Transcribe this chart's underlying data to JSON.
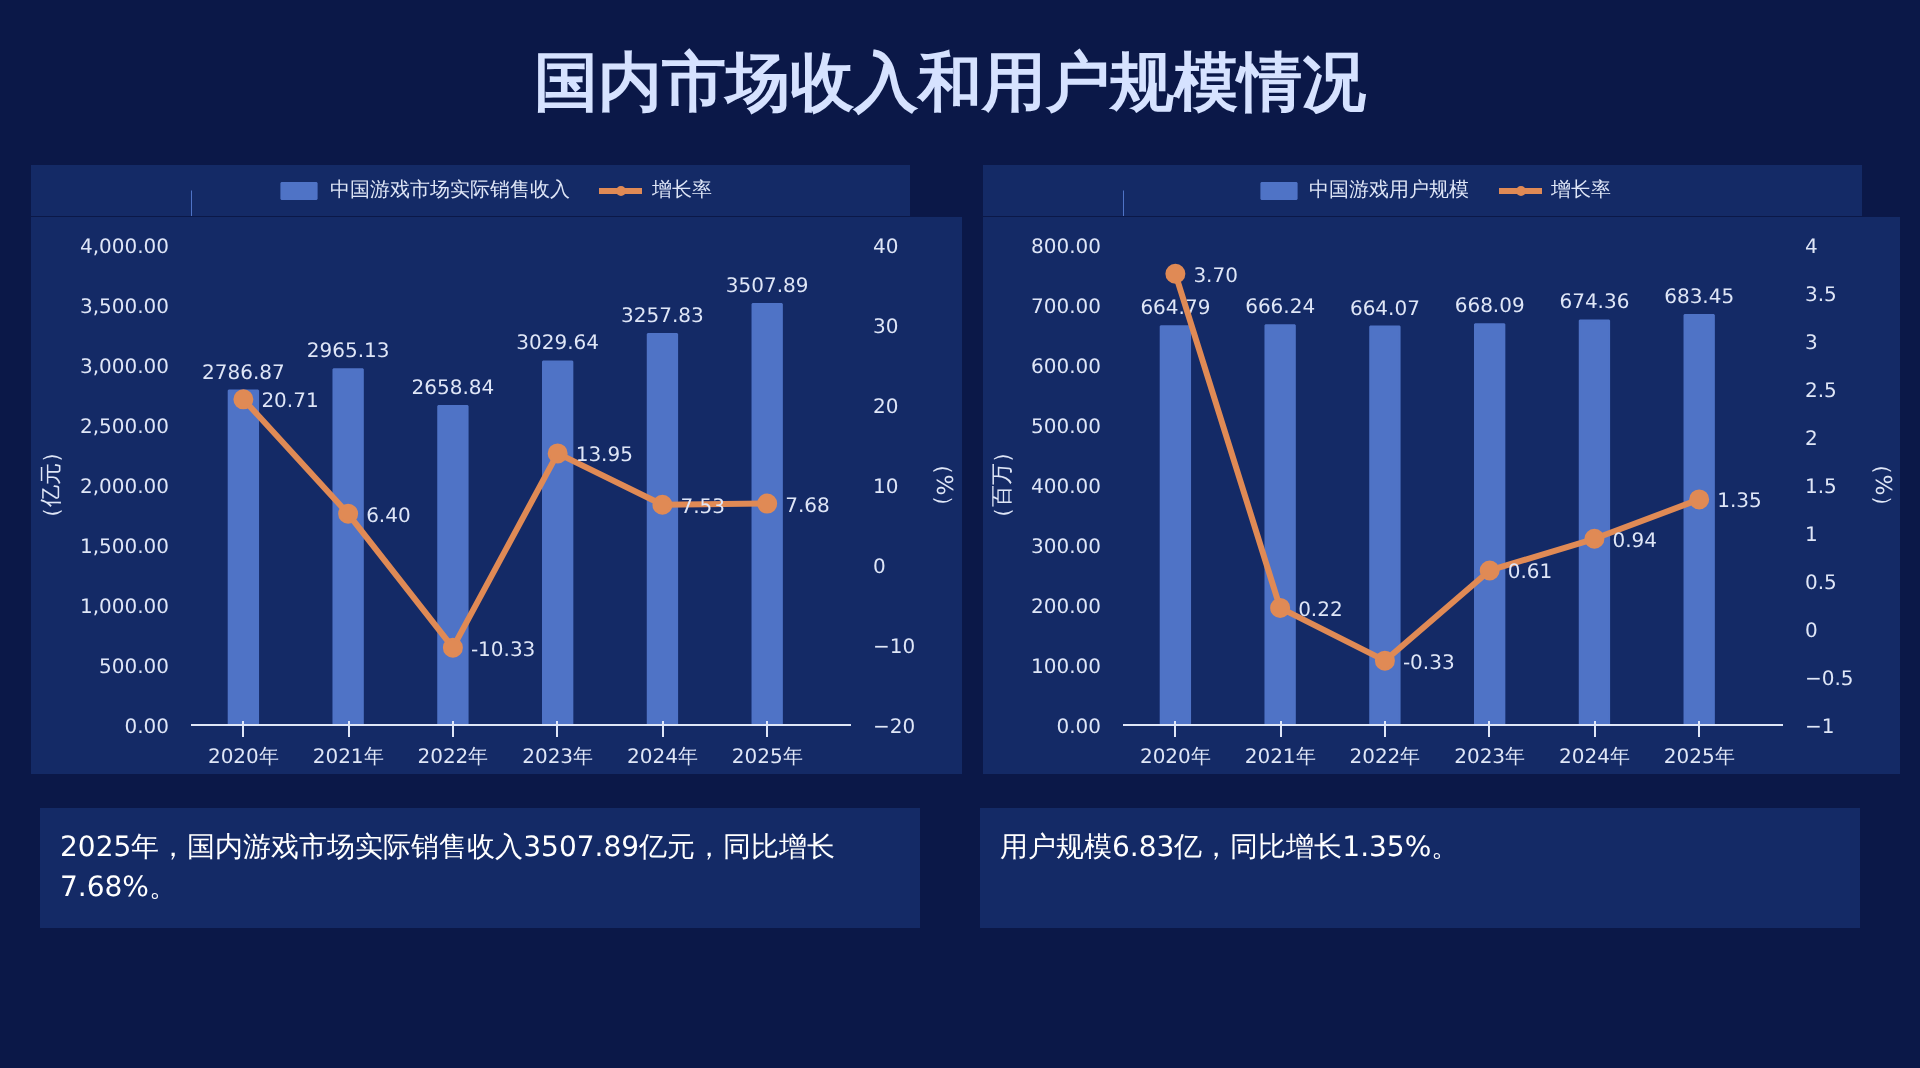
{
  "chart_data": [
    {
      "type": "bar",
      "title": "国内市场收入和用户规模情况",
      "categories": [
        "2020年",
        "2021年",
        "2022年",
        "2023年",
        "2024年",
        "2025年"
      ],
      "ylabel": "（亿元）",
      "y2label": "（%）",
      "series": [
        {
          "name": "中国游戏市场实际销售收入",
          "color": "#4f73c6",
          "values": [
            2786.87,
            2965.13,
            2658.84,
            3029.64,
            3257.83,
            3507.89
          ],
          "value_labels": [
            "2786.87",
            "2965.13",
            "2658.84",
            "3029.64",
            "3257.83",
            "3507.89"
          ]
        },
        {
          "name": "增长率",
          "type": "line",
          "axis": "y2",
          "color": "#e08a55",
          "values": [
            20.71,
            6.4,
            -10.33,
            13.95,
            7.53,
            7.68
          ],
          "value_labels": [
            "20.71",
            "6.40",
            "-10.33",
            "13.95",
            "7.53",
            "7.68"
          ]
        }
      ],
      "ylim": [
        0,
        4000
      ],
      "yticks": [
        {
          "value": 0,
          "label": "0.00"
        },
        {
          "value": 500,
          "label": "500.00"
        },
        {
          "value": 1000,
          "label": "1,000.00"
        },
        {
          "value": 1500,
          "label": "1,500.00"
        },
        {
          "value": 2000,
          "label": "2,000.00"
        },
        {
          "value": 2500,
          "label": "2,500.00"
        },
        {
          "value": 3000,
          "label": "3,000.00"
        },
        {
          "value": 3500,
          "label": "3,500.00"
        },
        {
          "value": 4000,
          "label": "4,000.00"
        }
      ],
      "y2lim": [
        -20,
        40
      ],
      "y2ticks": [
        -20,
        -10,
        0,
        10,
        20,
        30,
        40
      ],
      "legend": "top",
      "grid": false,
      "marker": "circle",
      "line_style": "solid",
      "annotations": [
        "2025年，国内游戏市场实际销售收入3507.89亿元，同比增长7.68%。"
      ]
    },
    {
      "type": "bar",
      "categories": [
        "2020年",
        "2021年",
        "2022年",
        "2023年",
        "2024年",
        "2025年"
      ],
      "ylabel": "（百万）",
      "y2label": "（%）",
      "series": [
        {
          "name": "中国游戏用户规模",
          "color": "#4f73c6",
          "values": [
            664.79,
            666.24,
            664.07,
            668.09,
            674.36,
            683.45
          ],
          "value_labels": [
            "664.79",
            "666.24",
            "664.07",
            "668.09",
            "674.36",
            "683.45"
          ]
        },
        {
          "name": "增长率",
          "type": "line",
          "axis": "y2",
          "color": "#e08a55",
          "values": [
            3.7,
            0.22,
            -0.33,
            0.61,
            0.94,
            1.35
          ],
          "value_labels": [
            "3.70",
            "0.22",
            "-0.33",
            "0.61",
            "0.94",
            "1.35"
          ]
        }
      ],
      "ylim": [
        0,
        800
      ],
      "yticks": [
        {
          "value": 0,
          "label": "0.00"
        },
        {
          "value": 100,
          "label": "100.00"
        },
        {
          "value": 200,
          "label": "200.00"
        },
        {
          "value": 300,
          "label": "300.00"
        },
        {
          "value": 400,
          "label": "400.00"
        },
        {
          "value": 500,
          "label": "500.00"
        },
        {
          "value": 600,
          "label": "600.00"
        },
        {
          "value": 700,
          "label": "700.00"
        },
        {
          "value": 800,
          "label": "800.00"
        }
      ],
      "y2lim": [
        -1,
        4
      ],
      "y2ticks": [
        -1,
        -0.5,
        0,
        0.5,
        1,
        1.5,
        2,
        2.5,
        3,
        3.5,
        4
      ],
      "legend": "top",
      "grid": false,
      "marker": "circle",
      "line_style": "solid",
      "annotations": [
        "用户规模6.83亿，同比增长1.35%。"
      ]
    }
  ]
}
